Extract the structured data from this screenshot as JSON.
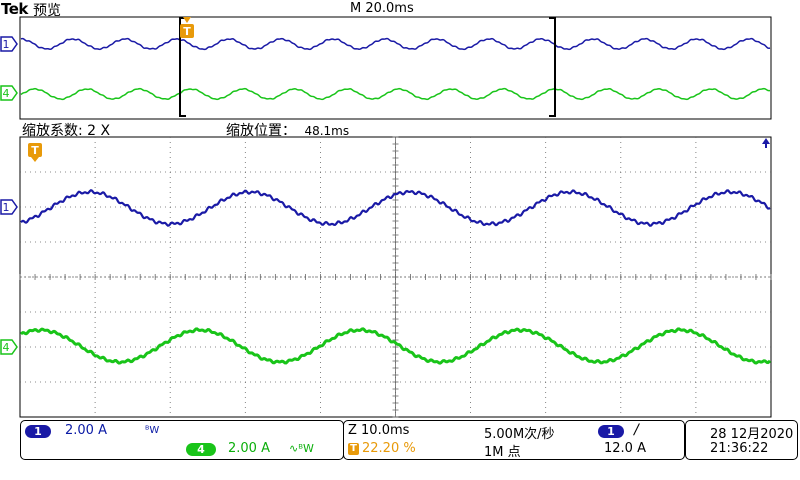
{
  "header": {
    "brand": "Tek",
    "mode": "预览",
    "timebase": "M 20.0ms"
  },
  "zoom_info": {
    "factor": "缩放系数: 2 X",
    "position_label": "缩放位置：",
    "position_value": "48.1ms"
  },
  "channels": [
    {
      "number": "1",
      "color": "#1a1aa6",
      "scale": "2.00 A",
      "suffix": "ᴮW"
    },
    {
      "number": "4",
      "color": "#19c419",
      "scale": "2.00 A",
      "suffix": "∿ᴮW"
    }
  ],
  "overview": {
    "trigger_marker": "T"
  },
  "main": {
    "trigger_marker": "T"
  },
  "timing": {
    "zoom_scale": "Z 10.0ms",
    "trigger_position": "22.20 %",
    "sample_rate": "5.00M次/秒",
    "record_length": "1M 点"
  },
  "trigger": {
    "source": "1",
    "slope": "/",
    "level": "12.0 A"
  },
  "datetime": {
    "date": "28 12月2020",
    "time": "21:36:22"
  },
  "colors": {
    "ch1": "#1a1aa6",
    "ch4": "#19c419",
    "trigger": "#e89a0a",
    "grid": "#555555"
  }
}
